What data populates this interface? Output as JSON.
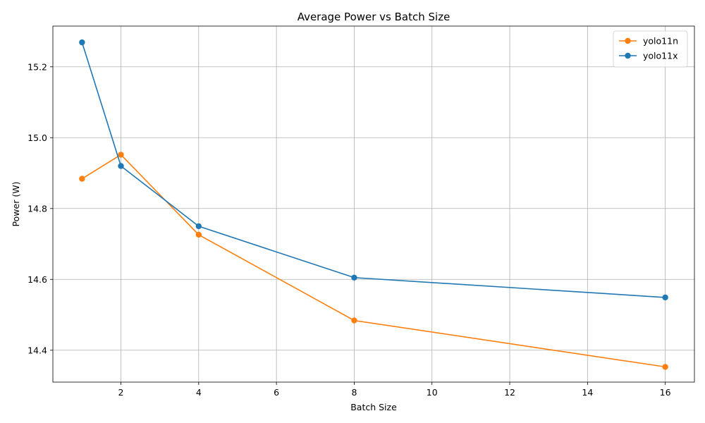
{
  "chart_data": {
    "type": "line",
    "title": "Average Power vs Batch Size",
    "xlabel": "Batch Size",
    "ylabel": "Power (W)",
    "xlim": [
      0.25,
      16.75
    ],
    "ylim": [
      14.31,
      15.315
    ],
    "xticks": [
      2,
      4,
      6,
      8,
      10,
      12,
      14,
      16
    ],
    "yticks": [
      14.4,
      14.6,
      14.8,
      15.0,
      15.2
    ],
    "ytick_labels": [
      "14.4",
      "14.6",
      "14.8",
      "15.0",
      "15.2"
    ],
    "grid": true,
    "legend_position": "top-right",
    "x": [
      1,
      2,
      4,
      8,
      16
    ],
    "series": [
      {
        "name": "yolo11n",
        "color": "#ff7f0e",
        "values": [
          14.884,
          14.952,
          14.726,
          14.484,
          14.353
        ]
      },
      {
        "name": "yolo11x",
        "color": "#1f77b4",
        "values": [
          15.269,
          14.92,
          14.75,
          14.605,
          14.549
        ]
      }
    ]
  }
}
